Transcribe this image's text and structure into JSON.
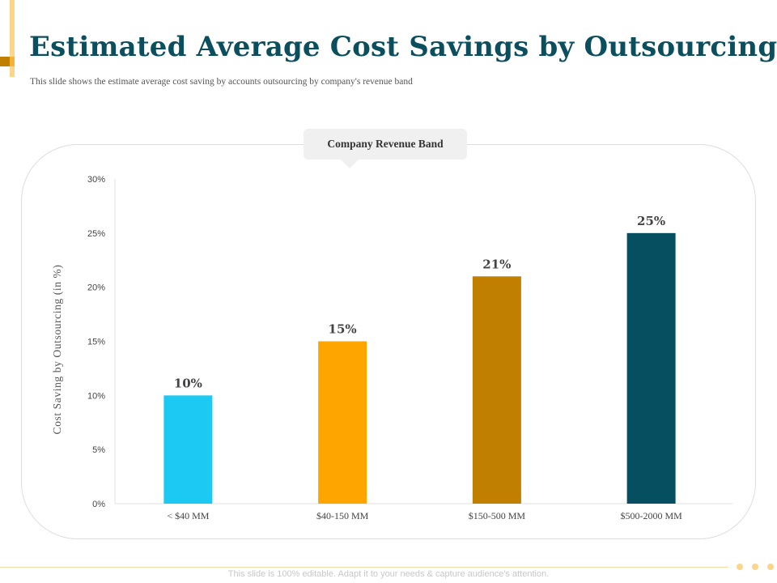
{
  "header": {
    "title": "Estimated Average Cost Savings by Outsourcing",
    "subtitle": "This slide shows the estimate average cost saving by accounts outsourcing by company's revenue band"
  },
  "callout": {
    "label": "Company Revenue Band"
  },
  "footer": {
    "text": "This slide is 100% editable. Adapt it to your needs & capture audience's attention."
  },
  "colors": {
    "title": "#0b4f5e",
    "accent_gold": "#f5b335",
    "accent_dark": "#c17f00",
    "accent_light": "#fbd58a"
  },
  "chart_data": {
    "type": "bar",
    "categories": [
      "< $40 MM",
      "$40-150 MM",
      "$150-500 MM",
      "$500-2000 MM"
    ],
    "values": [
      10,
      15,
      21,
      25
    ],
    "value_labels": [
      "10%",
      "15%",
      "21%",
      "25%"
    ],
    "bar_colors": [
      "#1cc9f2",
      "#ffa500",
      "#c17f00",
      "#064f61"
    ],
    "ylabel": "Cost Saving by Outsourcing (in %)",
    "xlabel": "",
    "ylim": [
      0,
      30
    ],
    "yticks": [
      0,
      5,
      10,
      15,
      20,
      25,
      30
    ],
    "ytick_labels": [
      "0%",
      "5%",
      "10%",
      "15%",
      "20%",
      "25%",
      "30%"
    ],
    "grid": false,
    "legend": "none"
  }
}
